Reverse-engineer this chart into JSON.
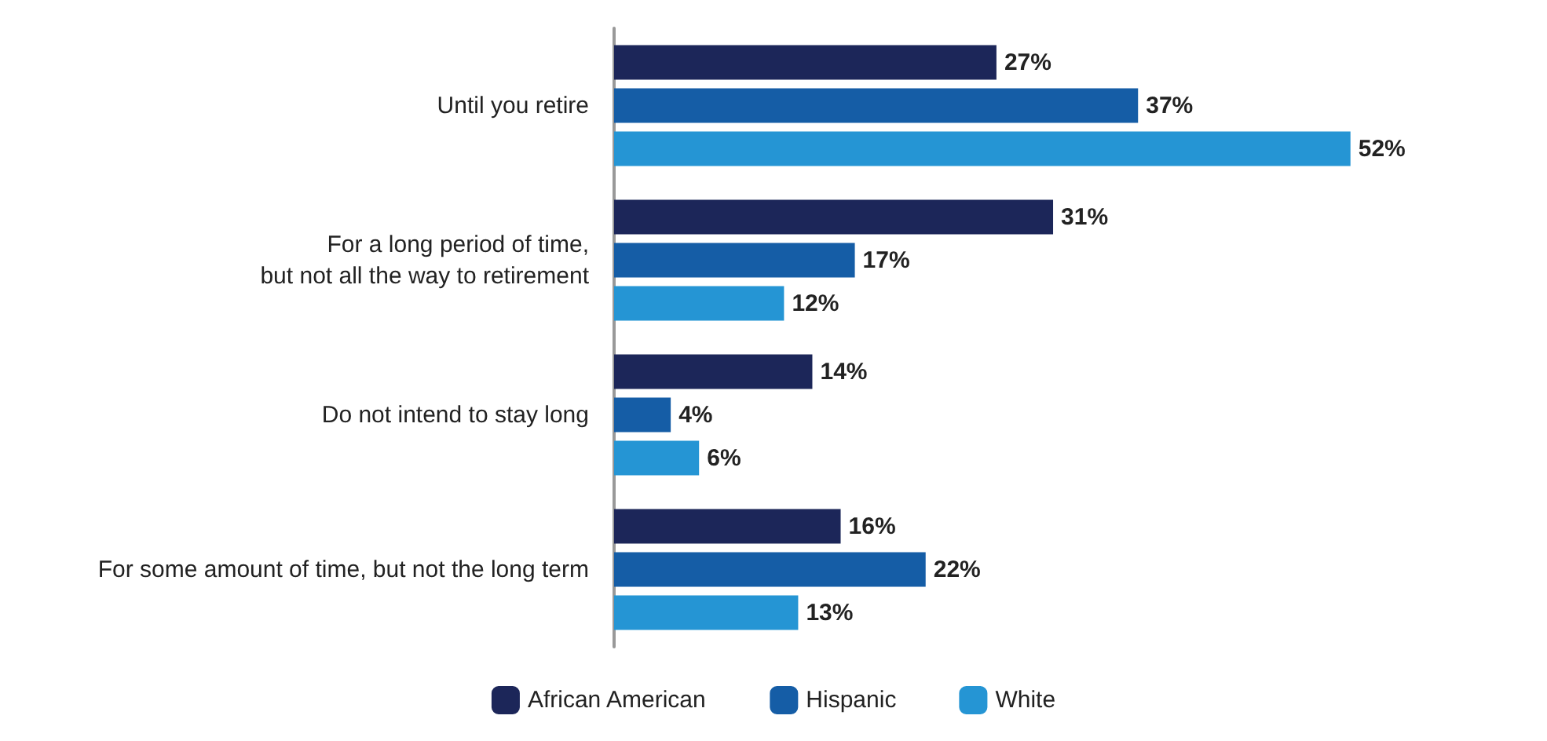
{
  "chart_data": {
    "type": "bar",
    "orientation": "horizontal",
    "categories": [
      "Until you retire",
      "For a long period of time,\nbut not all the way to retirement",
      "Do not intend to stay long",
      "For some amount of time, but not the long term"
    ],
    "series": [
      {
        "name": "African American",
        "color": "#1c2659",
        "values": [
          27,
          31,
          14,
          16
        ],
        "value_labels": [
          "27%",
          "31%",
          "14%",
          "16%"
        ]
      },
      {
        "name": "Hispanic",
        "color": "#155da6",
        "values": [
          37,
          17,
          4,
          22
        ],
        "value_labels": [
          "37%",
          "17%",
          "4%",
          "22%"
        ]
      },
      {
        "name": "White",
        "color": "#2595d4",
        "values": [
          52,
          12,
          6,
          13
        ],
        "value_labels": [
          "52%",
          "12%",
          "6%",
          "13%"
        ]
      }
    ],
    "legend": "bottom",
    "grid": false
  }
}
